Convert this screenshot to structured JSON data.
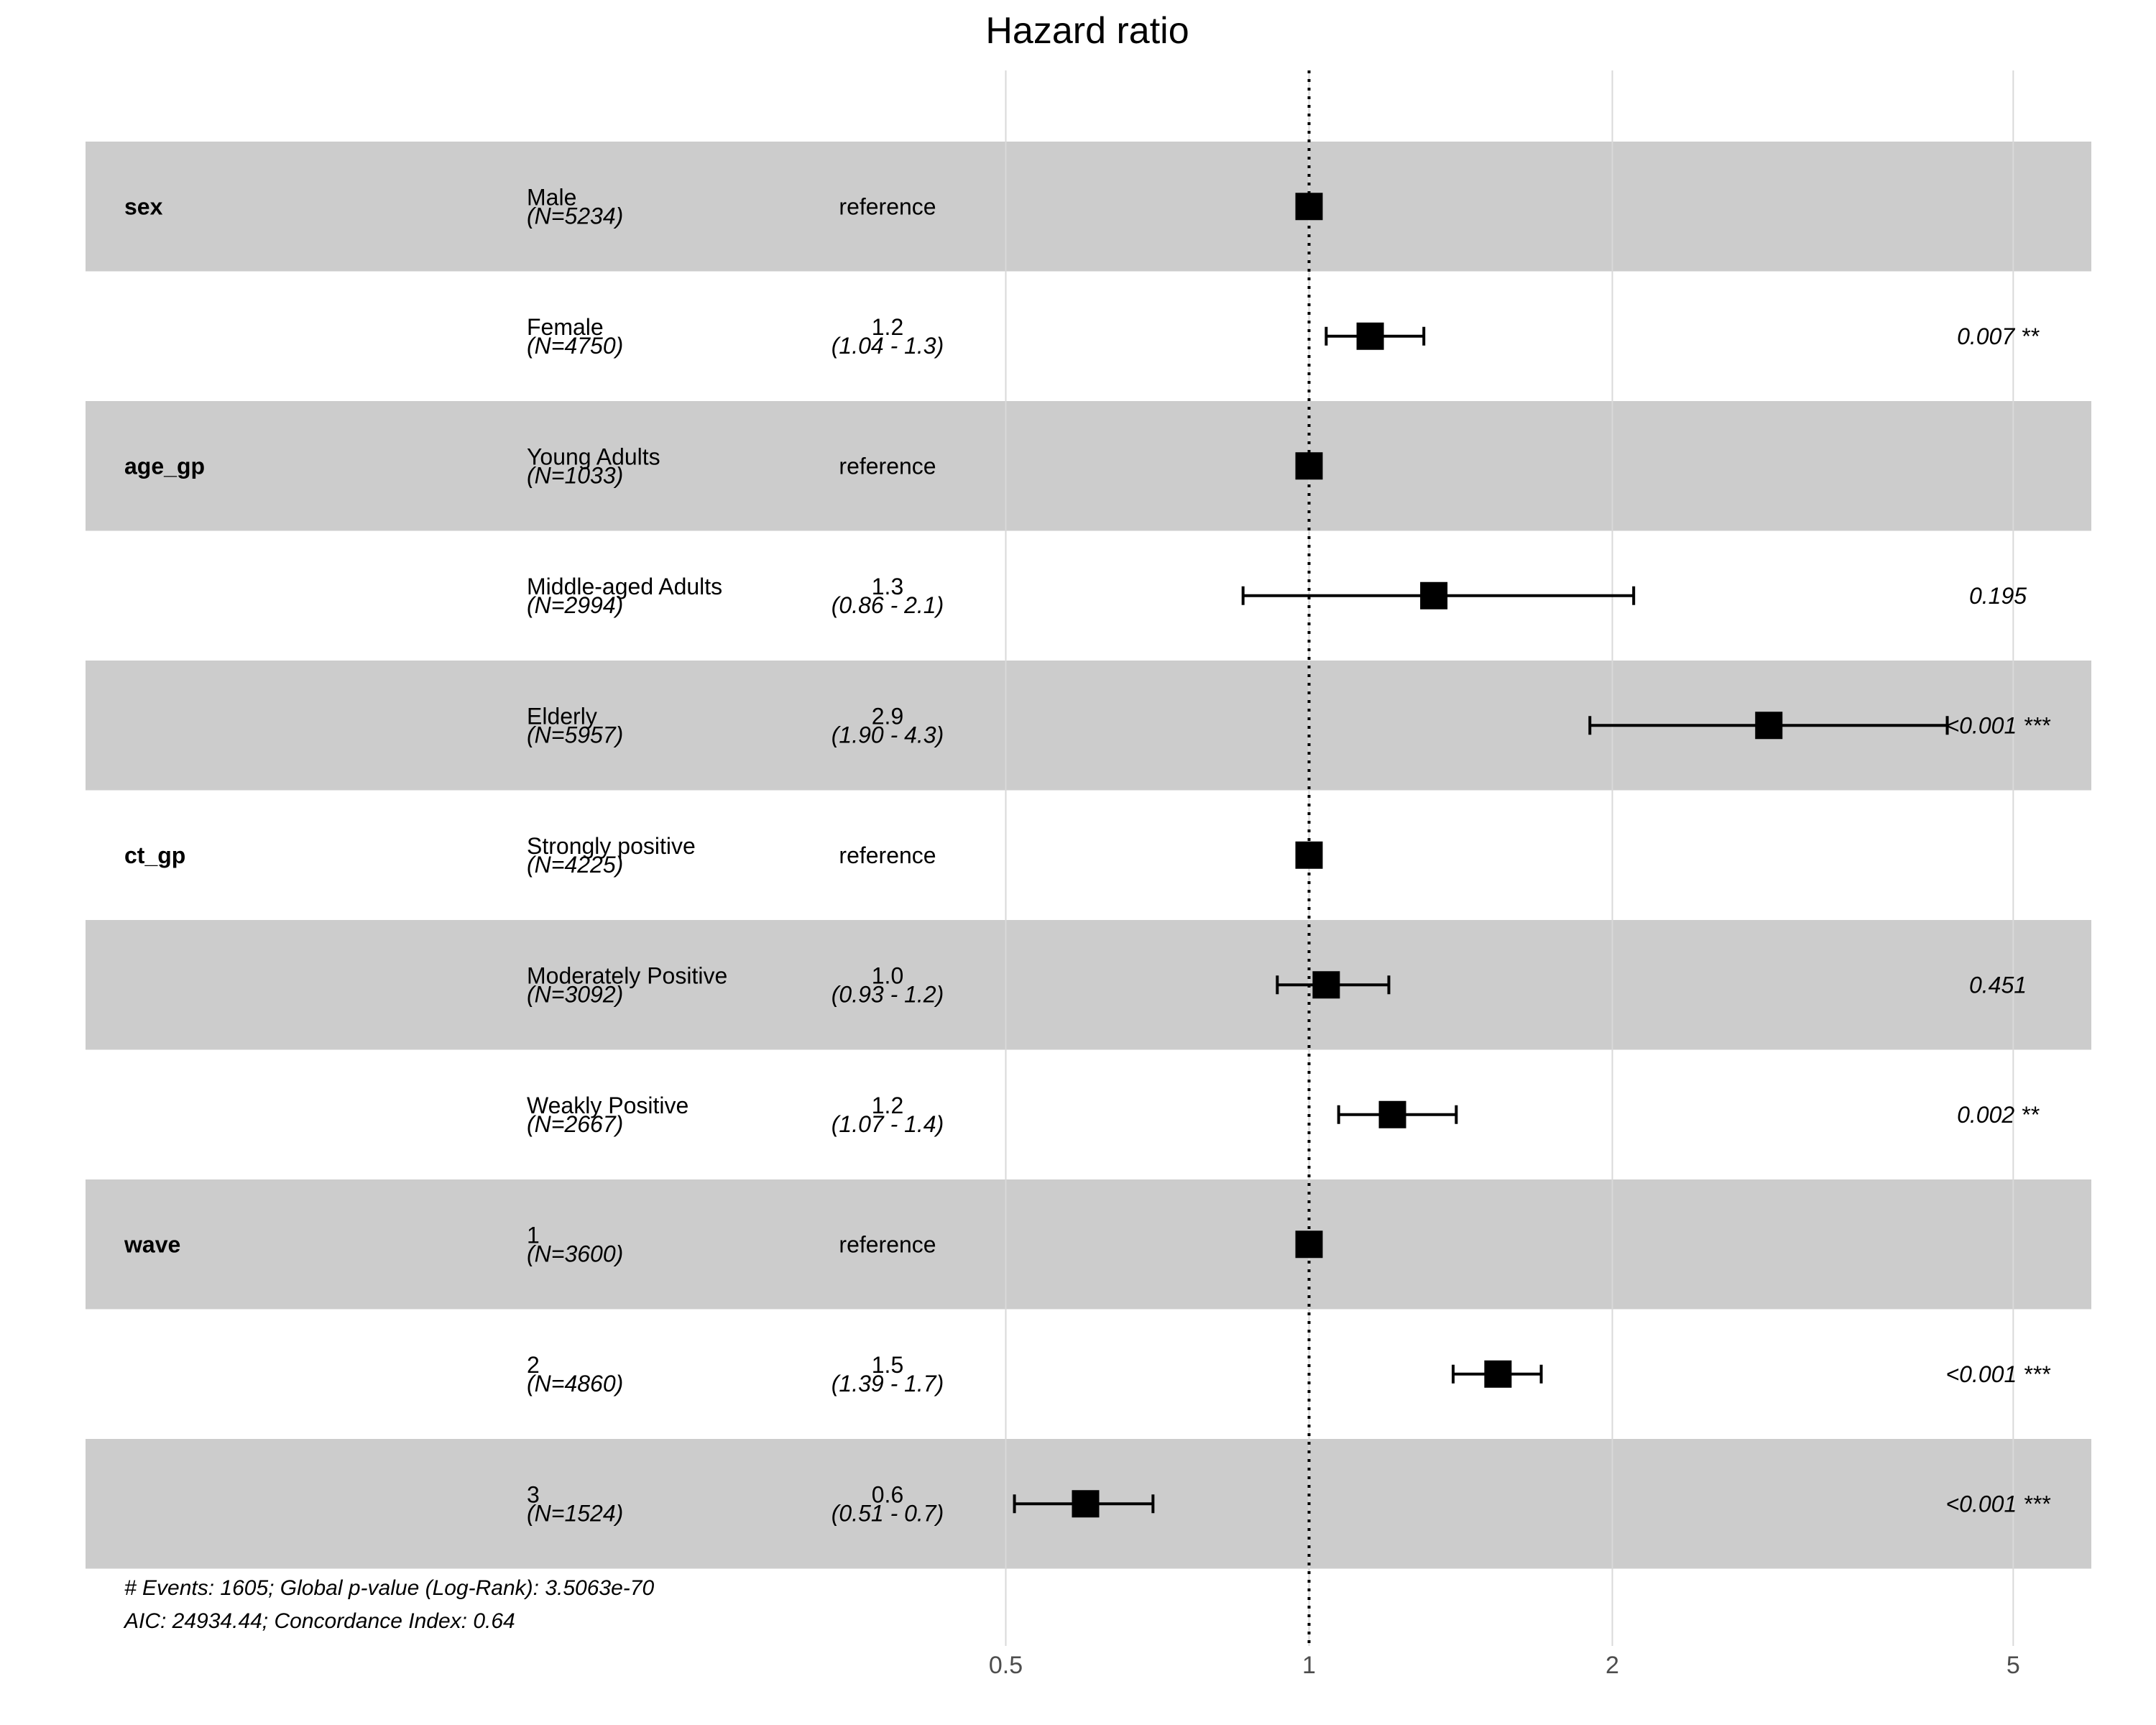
{
  "chart_data": {
    "type": "forest",
    "title": "Hazard ratio",
    "x_scale": "log",
    "xlim": [
      0.46,
      6.0
    ],
    "x_ticks": [
      0.5,
      1,
      2,
      5
    ],
    "x_tick_labels": [
      "0.5",
      "1",
      "2",
      "5"
    ],
    "reference_line": 1,
    "rows": [
      {
        "var": "sex",
        "level": "Male",
        "n": "(N=5234)",
        "est_text": "reference",
        "ci_text": "",
        "p": "",
        "hr": 1.0,
        "lo": null,
        "hi": null,
        "shaded": true
      },
      {
        "var": "",
        "level": "Female",
        "n": "(N=4750)",
        "est_text": "1.2",
        "ci_text": "(1.04 - 1.3)",
        "p": "0.007 **",
        "hr": 1.15,
        "lo": 1.04,
        "hi": 1.3,
        "shaded": false
      },
      {
        "var": "age_gp",
        "level": "Young Adults",
        "n": "(N=1033)",
        "est_text": "reference",
        "ci_text": "",
        "p": "",
        "hr": 1.0,
        "lo": null,
        "hi": null,
        "shaded": true
      },
      {
        "var": "",
        "level": "Middle-aged Adults",
        "n": "(N=2994)",
        "est_text": "1.3",
        "ci_text": "(0.86 - 2.1)",
        "p": "0.195",
        "hr": 1.33,
        "lo": 0.86,
        "hi": 2.1,
        "shaded": false
      },
      {
        "var": "",
        "level": "Elderly",
        "n": "(N=5957)",
        "est_text": "2.9",
        "ci_text": "(1.90 - 4.3)",
        "p": "<0.001 ***",
        "hr": 2.86,
        "lo": 1.9,
        "hi": 4.3,
        "shaded": true
      },
      {
        "var": "ct_gp",
        "level": "Strongly positive",
        "n": "(N=4225)",
        "est_text": "reference",
        "ci_text": "",
        "p": "",
        "hr": 1.0,
        "lo": null,
        "hi": null,
        "shaded": false
      },
      {
        "var": "",
        "level": "Moderately Positive",
        "n": "(N=3092)",
        "est_text": "1.0",
        "ci_text": "(0.93 - 1.2)",
        "p": "0.451",
        "hr": 1.04,
        "lo": 0.93,
        "hi": 1.2,
        "shaded": true
      },
      {
        "var": "",
        "level": "Weakly Positive",
        "n": "(N=2667)",
        "est_text": "1.2",
        "ci_text": "(1.07 - 1.4)",
        "p": "0.002 **",
        "hr": 1.21,
        "lo": 1.07,
        "hi": 1.4,
        "shaded": false
      },
      {
        "var": "wave",
        "level": "1",
        "n": "(N=3600)",
        "est_text": "reference",
        "ci_text": "",
        "p": "",
        "hr": 1.0,
        "lo": null,
        "hi": null,
        "shaded": true
      },
      {
        "var": "",
        "level": "2",
        "n": "(N=4860)",
        "est_text": "1.5",
        "ci_text": "(1.39 - 1.7)",
        "p": "<0.001 ***",
        "hr": 1.54,
        "lo": 1.39,
        "hi": 1.7,
        "shaded": false
      },
      {
        "var": "",
        "level": "3",
        "n": "(N=1524)",
        "est_text": "0.6",
        "ci_text": "(0.51 - 0.7)",
        "p": "<0.001 ***",
        "hr": 0.6,
        "lo": 0.51,
        "hi": 0.7,
        "shaded": true
      }
    ],
    "footnote_lines": [
      "# Events: 1605; Global p-value (Log-Rank): 3.5063e-70",
      "AIC: 24934.44; Concordance Index: 0.64"
    ],
    "colors": {
      "band": "#cccccc",
      "marker": "#000000",
      "grid": "#d9d9d9"
    }
  }
}
